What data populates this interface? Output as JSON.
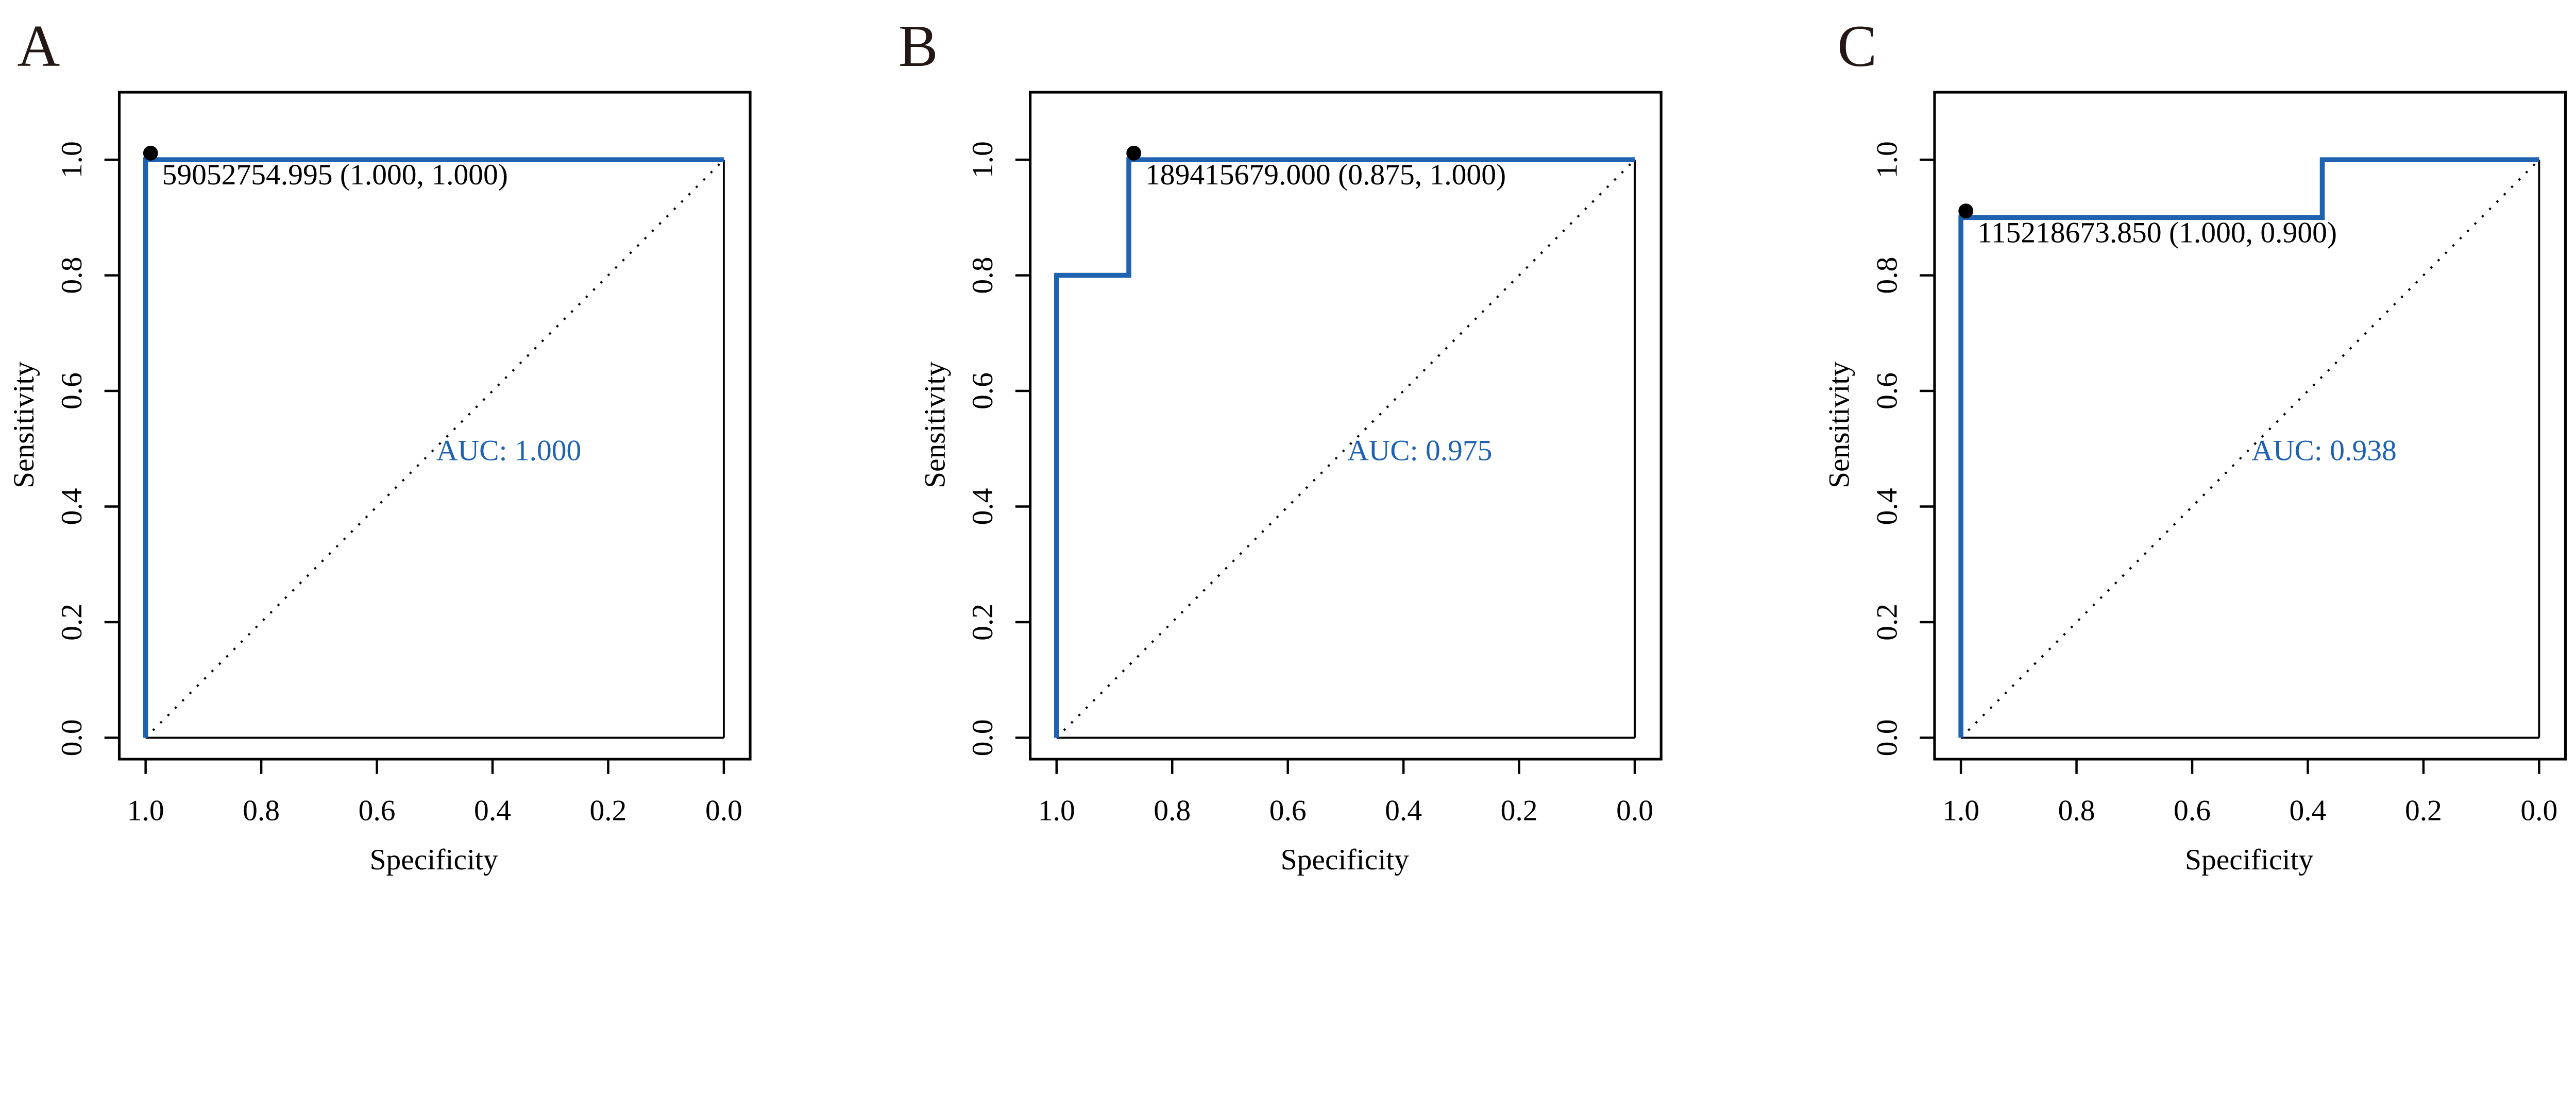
{
  "colors": {
    "curve": "#1f62b0",
    "axis": "#000000",
    "auc_text": "#1f62b0"
  },
  "chart_data": [
    {
      "type": "line",
      "panel_label": "A",
      "xlabel": "Specificity",
      "ylabel": "Sensitivity",
      "xlim": [
        1.0,
        0.0
      ],
      "ylim": [
        0.0,
        1.0
      ],
      "x_ticks": [
        "1.0",
        "0.8",
        "0.6",
        "0.4",
        "0.2",
        "0.0"
      ],
      "y_ticks": [
        "0.0",
        "0.2",
        "0.4",
        "0.6",
        "0.8",
        "1.0"
      ],
      "curve": {
        "specificity": [
          1.0,
          1.0,
          0.0
        ],
        "sensitivity": [
          0.0,
          1.0,
          1.0
        ]
      },
      "best_point": {
        "specificity": 1.0,
        "sensitivity": 1.0,
        "label": "59052754.995 (1.000, 1.000)"
      },
      "auc_label": "AUC: 1.000"
    },
    {
      "type": "line",
      "panel_label": "B",
      "xlabel": "Specificity",
      "ylabel": "Sensitivity",
      "xlim": [
        1.0,
        0.0
      ],
      "ylim": [
        0.0,
        1.0
      ],
      "x_ticks": [
        "1.0",
        "0.8",
        "0.6",
        "0.4",
        "0.2",
        "0.0"
      ],
      "y_ticks": [
        "0.0",
        "0.2",
        "0.4",
        "0.6",
        "0.8",
        "1.0"
      ],
      "curve": {
        "specificity": [
          1.0,
          1.0,
          0.875,
          0.875,
          0.0
        ],
        "sensitivity": [
          0.0,
          0.8,
          0.8,
          1.0,
          1.0
        ]
      },
      "best_point": {
        "specificity": 0.875,
        "sensitivity": 1.0,
        "label": "189415679.000 (0.875, 1.000)"
      },
      "auc_label": "AUC: 0.975"
    },
    {
      "type": "line",
      "panel_label": "C",
      "xlabel": "Specificity",
      "ylabel": "Sensitivity",
      "xlim": [
        1.0,
        0.0
      ],
      "ylim": [
        0.0,
        1.0
      ],
      "x_ticks": [
        "1.0",
        "0.8",
        "0.6",
        "0.4",
        "0.2",
        "0.0"
      ],
      "y_ticks": [
        "0.0",
        "0.2",
        "0.4",
        "0.6",
        "0.8",
        "1.0"
      ],
      "curve": {
        "specificity": [
          1.0,
          1.0,
          0.375,
          0.375,
          0.0
        ],
        "sensitivity": [
          0.0,
          0.9,
          0.9,
          1.0,
          1.0
        ]
      },
      "best_point": {
        "specificity": 1.0,
        "sensitivity": 0.9,
        "label": "115218673.850 (1.000, 0.900)"
      },
      "auc_label": "AUC: 0.938"
    }
  ]
}
